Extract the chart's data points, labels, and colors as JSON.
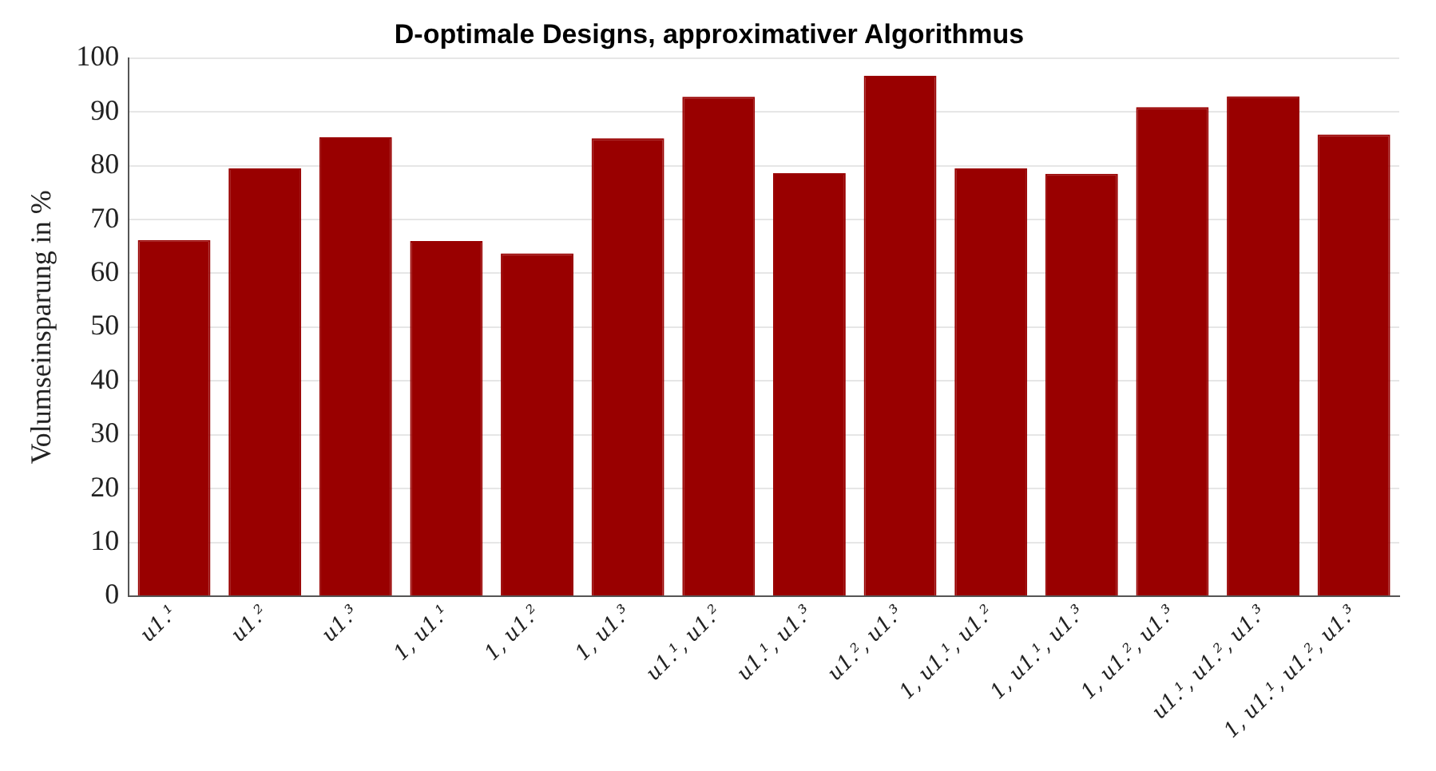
{
  "chart_data": {
    "type": "bar",
    "title": "D-optimale Designs, approximativer Algorithmus",
    "ylabel": "Volumseinsparung in %",
    "categories": [
      "u1.¹",
      "u1.²",
      "u1.³",
      "1, u1.¹",
      "1, u1.²",
      "1, u1.³",
      "u1.¹, u1.²",
      "u1.¹, u1.³",
      "u1.², u1.³",
      "1, u1.¹, u1.²",
      "1, u1.¹, u1.³",
      "1, u1.², u1.³",
      "u1.¹, u1.², u1.³",
      "1, u1.¹, u1.², u1.³"
    ],
    "values": [
      66.2,
      79.5,
      85.3,
      66.0,
      63.7,
      85.1,
      92.8,
      78.6,
      96.7,
      79.5,
      78.5,
      90.9,
      92.9,
      85.8
    ],
    "color": "#990000",
    "ylim": [
      0,
      100
    ],
    "yticks": [
      0,
      10,
      20,
      30,
      40,
      50,
      60,
      70,
      80,
      90,
      100
    ],
    "grid": "y",
    "legend": false
  }
}
